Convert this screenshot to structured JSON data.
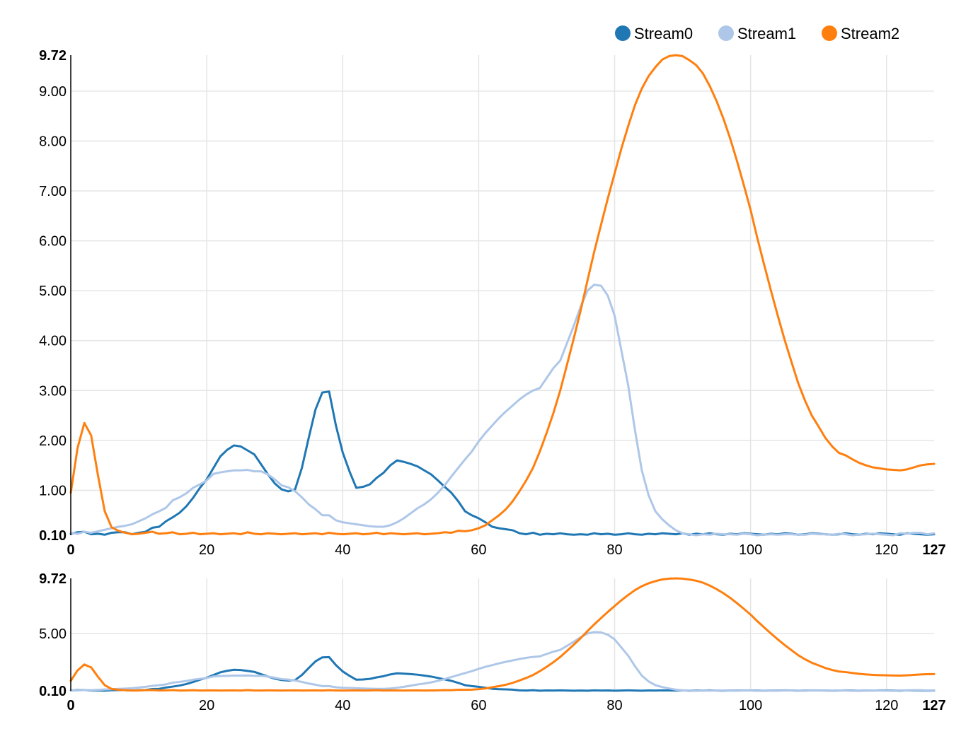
{
  "chart_data": [
    {
      "type": "line",
      "panel": "focus",
      "title": "",
      "xlabel": "",
      "ylabel": "",
      "xlim": [
        0,
        127
      ],
      "ylim": [
        0.1,
        9.72
      ],
      "x_ticks": [
        "0",
        "20",
        "40",
        "60",
        "80",
        "100",
        "120",
        "127"
      ],
      "y_ticks": [
        "0.10",
        "1.00",
        "2.00",
        "3.00",
        "4.00",
        "5.00",
        "6.00",
        "7.00",
        "8.00",
        "9.00",
        "9.72"
      ],
      "grid": true,
      "legend": "top-right",
      "series_ref": "streams"
    },
    {
      "type": "line",
      "panel": "context",
      "title": "",
      "xlabel": "",
      "ylabel": "",
      "xlim": [
        0,
        127
      ],
      "ylim": [
        0.1,
        9.72
      ],
      "x_ticks": [
        "0",
        "20",
        "40",
        "60",
        "80",
        "100",
        "120",
        "127"
      ],
      "y_ticks": [
        "0.10",
        "5.00",
        "9.72"
      ],
      "grid": true,
      "series_ref": "streams"
    }
  ],
  "legend": [
    {
      "name": "Stream0",
      "color": "#1f77b4"
    },
    {
      "name": "Stream1",
      "color": "#aec7e8"
    },
    {
      "name": "Stream2",
      "color": "#ff7f0e"
    }
  ],
  "streams": {
    "x_start": 0,
    "x_step": 1,
    "series": [
      {
        "name": "Stream0",
        "color": "#1f77b4",
        "values": [
          0.13,
          0.16,
          0.17,
          0.12,
          0.13,
          0.11,
          0.15,
          0.16,
          0.16,
          0.12,
          0.15,
          0.17,
          0.25,
          0.27,
          0.38,
          0.46,
          0.55,
          0.68,
          0.85,
          1.05,
          1.22,
          1.45,
          1.68,
          1.81,
          1.9,
          1.88,
          1.8,
          1.72,
          1.52,
          1.32,
          1.14,
          1.02,
          0.98,
          1.02,
          1.45,
          2.05,
          2.62,
          2.96,
          2.98,
          2.3,
          1.76,
          1.38,
          1.05,
          1.07,
          1.12,
          1.25,
          1.35,
          1.5,
          1.6,
          1.57,
          1.53,
          1.48,
          1.4,
          1.32,
          1.2,
          1.07,
          0.95,
          0.78,
          0.58,
          0.5,
          0.44,
          0.36,
          0.27,
          0.24,
          0.22,
          0.2,
          0.14,
          0.12,
          0.15,
          0.11,
          0.13,
          0.12,
          0.14,
          0.12,
          0.11,
          0.12,
          0.11,
          0.14,
          0.12,
          0.13,
          0.11,
          0.12,
          0.14,
          0.12,
          0.11,
          0.13,
          0.12,
          0.14,
          0.13,
          0.12,
          0.14,
          0.11,
          0.13,
          0.12,
          0.14,
          0.12,
          0.11,
          0.13,
          0.12,
          0.14,
          0.13,
          0.12,
          0.11,
          0.13,
          0.12,
          0.14,
          0.13,
          0.11,
          0.12,
          0.14,
          0.13,
          0.12,
          0.11,
          0.12,
          0.14,
          0.12,
          0.11,
          0.13,
          0.12,
          0.14,
          0.13,
          0.12,
          0.11,
          0.14,
          0.13,
          0.12,
          0.11,
          0.12
        ]
      },
      {
        "name": "Stream1",
        "color": "#aec7e8",
        "values": [
          0.15,
          0.13,
          0.17,
          0.15,
          0.18,
          0.21,
          0.24,
          0.27,
          0.29,
          0.32,
          0.38,
          0.44,
          0.52,
          0.58,
          0.65,
          0.8,
          0.86,
          0.94,
          1.05,
          1.12,
          1.2,
          1.33,
          1.36,
          1.38,
          1.4,
          1.4,
          1.41,
          1.38,
          1.38,
          1.32,
          1.22,
          1.1,
          1.06,
          0.98,
          0.86,
          0.72,
          0.62,
          0.5,
          0.5,
          0.4,
          0.36,
          0.34,
          0.32,
          0.3,
          0.28,
          0.27,
          0.27,
          0.3,
          0.36,
          0.44,
          0.54,
          0.64,
          0.72,
          0.82,
          0.95,
          1.1,
          1.28,
          1.45,
          1.62,
          1.78,
          1.98,
          2.15,
          2.3,
          2.45,
          2.58,
          2.7,
          2.82,
          2.92,
          3.0,
          3.05,
          3.25,
          3.45,
          3.6,
          3.95,
          4.3,
          4.68,
          5.0,
          5.12,
          5.1,
          4.9,
          4.5,
          3.8,
          3.1,
          2.2,
          1.4,
          0.9,
          0.58,
          0.42,
          0.3,
          0.2,
          0.14,
          0.12,
          0.1,
          0.12,
          0.11,
          0.13,
          0.12,
          0.12,
          0.11,
          0.13,
          0.12,
          0.1,
          0.11,
          0.12,
          0.11,
          0.12,
          0.12,
          0.11,
          0.11,
          0.13,
          0.12,
          0.12,
          0.11,
          0.13,
          0.12,
          0.1,
          0.11,
          0.12,
          0.13,
          0.12,
          0.11,
          0.1,
          0.14,
          0.13,
          0.15,
          0.15,
          0.12,
          0.14
        ]
      },
      {
        "name": "Stream2",
        "color": "#ff7f0e",
        "values": [
          0.95,
          1.85,
          2.35,
          2.1,
          1.3,
          0.58,
          0.26,
          0.19,
          0.15,
          0.12,
          0.13,
          0.15,
          0.17,
          0.13,
          0.14,
          0.16,
          0.12,
          0.13,
          0.15,
          0.12,
          0.13,
          0.14,
          0.12,
          0.13,
          0.14,
          0.12,
          0.16,
          0.13,
          0.12,
          0.14,
          0.13,
          0.12,
          0.13,
          0.14,
          0.12,
          0.13,
          0.14,
          0.12,
          0.15,
          0.13,
          0.12,
          0.13,
          0.14,
          0.12,
          0.13,
          0.15,
          0.12,
          0.14,
          0.13,
          0.12,
          0.13,
          0.14,
          0.12,
          0.13,
          0.14,
          0.16,
          0.15,
          0.19,
          0.18,
          0.2,
          0.24,
          0.3,
          0.4,
          0.5,
          0.62,
          0.78,
          0.98,
          1.2,
          1.45,
          1.78,
          2.15,
          2.55,
          3.0,
          3.52,
          4.05,
          4.6,
          5.2,
          5.78,
          6.32,
          6.85,
          7.35,
          7.85,
          8.3,
          8.72,
          9.05,
          9.3,
          9.48,
          9.63,
          9.7,
          9.72,
          9.7,
          9.62,
          9.52,
          9.35,
          9.1,
          8.8,
          8.45,
          8.05,
          7.6,
          7.12,
          6.62,
          6.05,
          5.52,
          5.0,
          4.5,
          4.02,
          3.58,
          3.15,
          2.8,
          2.5,
          2.28,
          2.05,
          1.88,
          1.75,
          1.7,
          1.62,
          1.55,
          1.5,
          1.46,
          1.44,
          1.42,
          1.41,
          1.4,
          1.42,
          1.46,
          1.5,
          1.52,
          1.53
        ]
      }
    ]
  }
}
